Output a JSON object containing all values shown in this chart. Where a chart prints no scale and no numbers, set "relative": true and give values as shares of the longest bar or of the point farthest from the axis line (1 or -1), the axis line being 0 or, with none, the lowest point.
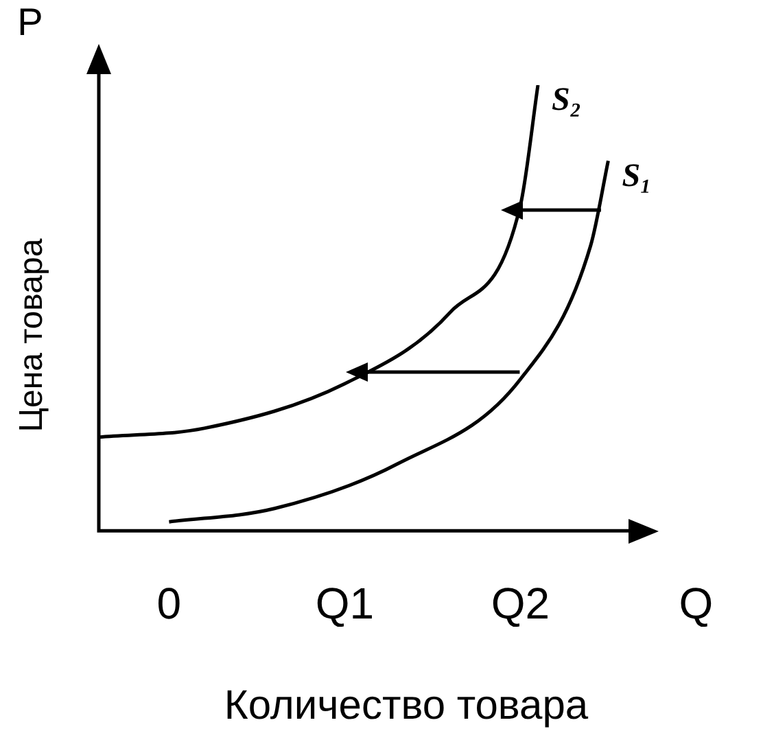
{
  "chart_data": {
    "type": "line",
    "relative": true,
    "ylabel": "Цена товара",
    "xlabel": "Количество товара",
    "annotations": [
      "P"
    ],
    "categories": [
      null,
      null,
      null,
      null,
      "0",
      null,
      null,
      null,
      null,
      null,
      null,
      null,
      null,
      null,
      "Q1",
      null,
      null,
      null,
      null,
      null,
      null,
      null,
      null,
      null,
      "Q2",
      null,
      null,
      null,
      null,
      null,
      null,
      null,
      null,
      null,
      "Q",
      null
    ],
    "tick_labels": "x",
    "grid": false,
    "legend": false,
    "marker": "none",
    "line_style": "solid",
    "series": [
      {
        "name": "S₂",
        "color": "#000000",
        "values": [
          0.21,
          null,
          null,
          null,
          null,
          null,
          0.23,
          null,
          null,
          null,
          null,
          null,
          null,
          null,
          0.33,
          null,
          null,
          null,
          null,
          null,
          0.49,
          null,
          null,
          null,
          0.73,
          1,
          null,
          null,
          null,
          null,
          null,
          null,
          null,
          null,
          null,
          null
        ]
      },
      {
        "name": "S₁",
        "color": "#000000",
        "values": [
          null,
          null,
          null,
          null,
          0.02,
          null,
          null,
          null,
          null,
          null,
          0.05,
          null,
          null,
          null,
          null,
          null,
          null,
          0.15,
          null,
          null,
          null,
          null,
          null,
          null,
          0.34,
          null,
          null,
          null,
          0.64,
          0.83,
          null,
          null,
          null,
          null,
          null,
          null
        ]
      }
    ]
  }
}
